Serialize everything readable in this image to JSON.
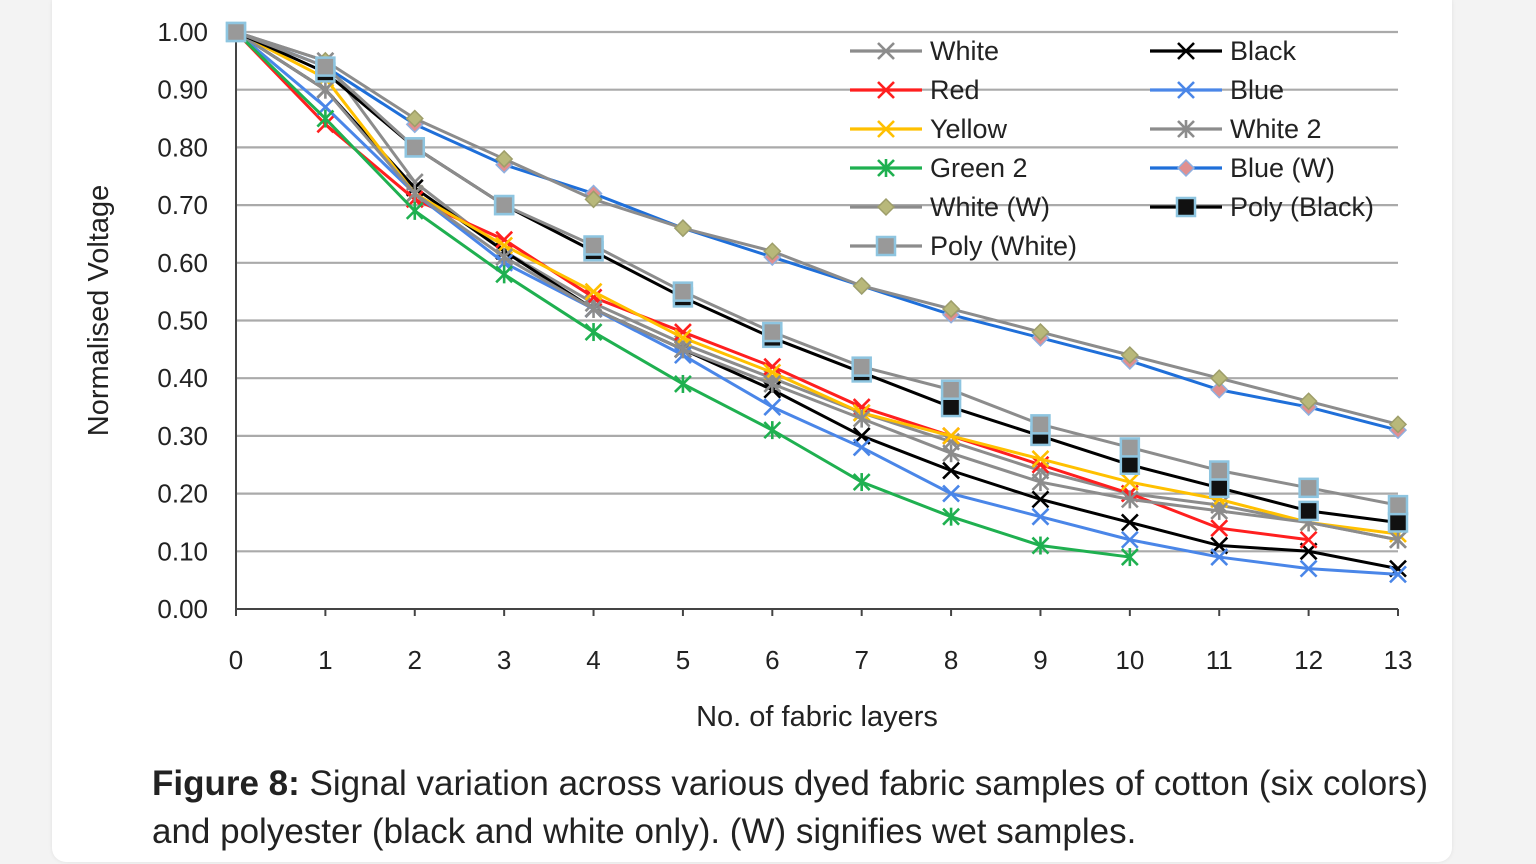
{
  "caption": {
    "label": "Figure 8:",
    "text": "Signal variation across various dyed fabric samples of cotton (six colors) and polyester (black and white only). (W) signifies wet samples."
  },
  "chart_data": {
    "type": "line",
    "title": "",
    "xlabel": "No. of fabric layers",
    "ylabel": "Normalised Voltage",
    "xlim": [
      0,
      13
    ],
    "ylim": [
      0,
      1
    ],
    "x_ticks": [
      "0",
      "1",
      "2",
      "3",
      "4",
      "5",
      "6",
      "7",
      "8",
      "9",
      "10",
      "11",
      "12",
      "13"
    ],
    "y_ticks": [
      "0.00",
      "0.10",
      "0.20",
      "0.30",
      "0.40",
      "0.50",
      "0.60",
      "0.70",
      "0.80",
      "0.90",
      "1.00"
    ],
    "grid": true,
    "legend_position": "top-right",
    "series": [
      {
        "name": "White",
        "color": "#8c8c8c",
        "marker": "x",
        "x": [
          0,
          1,
          2,
          3,
          4,
          5,
          6,
          7,
          8,
          9,
          10,
          11,
          12,
          13
        ],
        "values": [
          1.0,
          0.95,
          0.74,
          0.62,
          0.53,
          0.46,
          0.4,
          0.34,
          0.29,
          0.24,
          0.2,
          0.18,
          0.15,
          0.12
        ]
      },
      {
        "name": "Black",
        "color": "#000000",
        "marker": "x",
        "x": [
          0,
          1,
          2,
          3,
          4,
          5,
          6,
          7,
          8,
          9,
          10,
          11,
          12,
          13
        ],
        "values": [
          1.0,
          0.9,
          0.73,
          0.62,
          0.52,
          0.45,
          0.38,
          0.3,
          0.24,
          0.19,
          0.15,
          0.11,
          0.1,
          0.07
        ]
      },
      {
        "name": "Red",
        "color": "#ff1f1f",
        "marker": "x",
        "x": [
          0,
          1,
          2,
          3,
          4,
          5,
          6,
          7,
          8,
          9,
          10,
          11,
          12
        ],
        "values": [
          1.0,
          0.84,
          0.71,
          0.64,
          0.54,
          0.48,
          0.42,
          0.35,
          0.3,
          0.25,
          0.2,
          0.14,
          0.12
        ]
      },
      {
        "name": "Blue",
        "color": "#4a86e8",
        "marker": "x",
        "x": [
          0,
          1,
          2,
          3,
          4,
          5,
          6,
          7,
          8,
          9,
          10,
          11,
          12,
          13
        ],
        "values": [
          1.0,
          0.87,
          0.72,
          0.6,
          0.52,
          0.44,
          0.35,
          0.28,
          0.2,
          0.16,
          0.12,
          0.09,
          0.07,
          0.06
        ]
      },
      {
        "name": "Yellow",
        "color": "#ffc000",
        "marker": "x",
        "x": [
          0,
          1,
          2,
          3,
          4,
          5,
          6,
          7,
          8,
          9,
          10,
          11,
          12,
          13
        ],
        "values": [
          1.0,
          0.92,
          0.72,
          0.63,
          0.55,
          0.47,
          0.41,
          0.34,
          0.3,
          0.26,
          0.22,
          0.19,
          0.15,
          0.13
        ]
      },
      {
        "name": "White 2",
        "color": "#8c8c8c",
        "marker": "asterisk",
        "x": [
          0,
          1,
          2,
          3,
          4,
          5,
          6,
          7,
          8,
          9,
          10,
          11,
          12,
          13
        ],
        "values": [
          1.0,
          0.9,
          0.72,
          0.61,
          0.52,
          0.45,
          0.39,
          0.33,
          0.27,
          0.22,
          0.19,
          0.17,
          0.15,
          0.12
        ]
      },
      {
        "name": "Green 2",
        "color": "#1fb050",
        "marker": "asterisk",
        "x": [
          0,
          1,
          2,
          3,
          4,
          5,
          6,
          7,
          8,
          9,
          10
        ],
        "values": [
          1.0,
          0.85,
          0.69,
          0.58,
          0.48,
          0.39,
          0.31,
          0.22,
          0.16,
          0.11,
          0.09
        ]
      },
      {
        "name": "Blue (W)",
        "color": "#1f6fd9",
        "marker": "diamond",
        "x": [
          0,
          1,
          2,
          3,
          4,
          5,
          6,
          7,
          8,
          9,
          10,
          11,
          12,
          13
        ],
        "values": [
          1.0,
          0.94,
          0.84,
          0.77,
          0.72,
          0.66,
          0.61,
          0.56,
          0.51,
          0.47,
          0.43,
          0.38,
          0.35,
          0.31
        ]
      },
      {
        "name": "White (W)",
        "color": "#8c8c8c",
        "marker": "diamond",
        "x": [
          0,
          1,
          2,
          3,
          4,
          5,
          6,
          7,
          8,
          9,
          10,
          11,
          12,
          13
        ],
        "values": [
          1.0,
          0.95,
          0.85,
          0.78,
          0.71,
          0.66,
          0.62,
          0.56,
          0.52,
          0.48,
          0.44,
          0.4,
          0.36,
          0.32
        ]
      },
      {
        "name": "Poly (Black)",
        "color": "#000000",
        "marker": "square",
        "x": [
          0,
          1,
          2,
          3,
          4,
          5,
          6,
          7,
          8,
          9,
          10,
          11,
          12,
          13
        ],
        "values": [
          1.0,
          0.93,
          0.8,
          0.7,
          0.62,
          0.54,
          0.47,
          0.41,
          0.35,
          0.3,
          0.25,
          0.21,
          0.17,
          0.15
        ]
      },
      {
        "name": "Poly (White)",
        "color": "#8c8c8c",
        "marker": "square",
        "x": [
          0,
          1,
          2,
          3,
          4,
          5,
          6,
          7,
          8,
          9,
          10,
          11,
          12,
          13
        ],
        "values": [
          1.0,
          0.94,
          0.8,
          0.7,
          0.63,
          0.55,
          0.48,
          0.42,
          0.38,
          0.32,
          0.28,
          0.24,
          0.21,
          0.18
        ]
      }
    ],
    "legend_order": [
      "White",
      "Black",
      "Red",
      "Blue",
      "Yellow",
      "White 2",
      "Green 2",
      "Blue (W)",
      "White (W)",
      "Poly (Black)",
      "Poly (White)"
    ]
  }
}
